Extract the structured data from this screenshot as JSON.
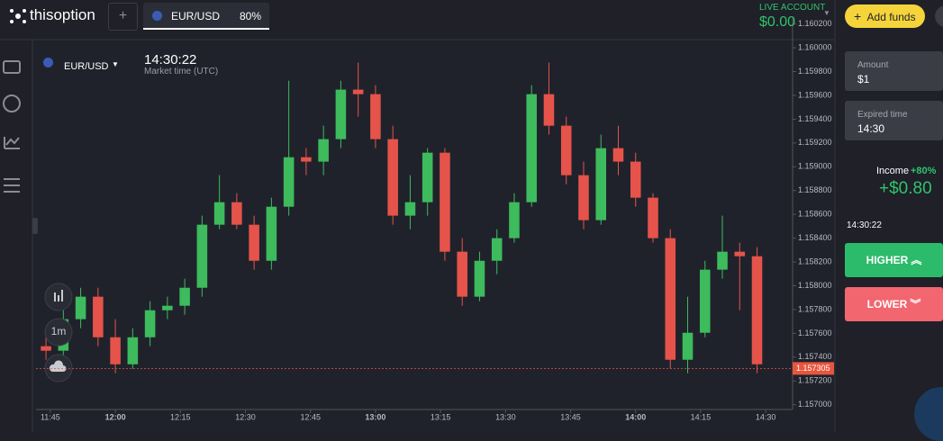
{
  "header": {
    "logo": "thisoption",
    "tab": {
      "symbol": "EUR/USD",
      "payout": "80%"
    },
    "account": {
      "label": "LIVE ACCOUNT",
      "balance": "$0.00"
    },
    "add_funds": "Add funds"
  },
  "chart_panel": {
    "symbol": "EUR/USD",
    "time": "14:30:22",
    "time_label": "Market time (UTC)",
    "timeframe": "1m"
  },
  "chart_data": {
    "type": "candlestick",
    "x": [
      704,
      708,
      712,
      716,
      720,
      724,
      728,
      732,
      736,
      740,
      744,
      748,
      752,
      756,
      760,
      764,
      768,
      772,
      776,
      780,
      784,
      788,
      792,
      796,
      800,
      804,
      808,
      812,
      816,
      820,
      824,
      828,
      832,
      836,
      840,
      844,
      848,
      852,
      856,
      860,
      864,
      868
    ],
    "open": [
      1.157492,
      1.157454,
      1.157719,
      1.157908,
      1.157567,
      1.15734,
      1.157567,
      1.157794,
      1.157832,
      1.157983,
      1.158513,
      1.158702,
      1.158513,
      1.15821,
      1.158664,
      1.15908,
      1.159043,
      1.159232,
      1.159648,
      1.15961,
      1.159232,
      1.158589,
      1.158702,
      1.159118,
      1.158286,
      1.157908,
      1.15821,
      1.1584,
      1.158702,
      1.15961,
      1.159345,
      1.158929,
      1.158551,
      1.159156,
      1.159043,
      1.15874,
      1.1584,
      1.157378,
      1.157605,
      1.158135,
      1.158286,
      1.158248
    ],
    "high": [
      1.157567,
      1.157794,
      1.157983,
      1.157983,
      1.157719,
      1.157643,
      1.15787,
      1.157908,
      1.158059,
      1.158589,
      1.158929,
      1.158778,
      1.158589,
      1.15874,
      1.159723,
      1.159156,
      1.159345,
      1.159723,
      1.159875,
      1.159686,
      1.159345,
      1.158929,
      1.159156,
      1.159156,
      1.1584,
      1.158286,
      1.158475,
      1.158778,
      1.159686,
      1.159875,
      1.159421,
      1.159043,
      1.15927,
      1.159345,
      1.159118,
      1.158778,
      1.158475,
      1.157908,
      1.15821,
      1.158589,
      1.158362,
      1.158324
    ],
    "low": [
      1.157378,
      1.157378,
      1.157643,
      1.157492,
      1.157265,
      1.157303,
      1.157492,
      1.157719,
      1.157757,
      1.157908,
      1.158475,
      1.158475,
      1.158135,
      1.158135,
      1.158589,
      1.158929,
      1.158929,
      1.159156,
      1.159421,
      1.159156,
      1.158513,
      1.158475,
      1.158589,
      1.15821,
      1.157832,
      1.15787,
      1.158097,
      1.158362,
      1.158664,
      1.15927,
      1.158853,
      1.158475,
      1.158513,
      1.158929,
      1.158664,
      1.158362,
      1.157303,
      1.157265,
      1.157567,
      1.158059,
      1.157794,
      1.157265
    ],
    "close": [
      1.157454,
      1.157719,
      1.157908,
      1.157567,
      1.15734,
      1.157567,
      1.157794,
      1.157832,
      1.157983,
      1.158513,
      1.158702,
      1.158513,
      1.15821,
      1.158664,
      1.15908,
      1.159043,
      1.159232,
      1.159648,
      1.15961,
      1.159232,
      1.158589,
      1.158702,
      1.159118,
      1.158286,
      1.157908,
      1.15821,
      1.1584,
      1.158702,
      1.15961,
      1.159345,
      1.158929,
      1.158551,
      1.159156,
      1.159043,
      1.15874,
      1.1584,
      1.157378,
      1.157605,
      1.158135,
      1.158286,
      1.158248,
      1.15734
    ],
    "up_color": "#3dbb5d",
    "down_color": "#e5534b",
    "xlim": [
      701.7,
      876.2
    ],
    "xticks": [
      {
        "value": 705,
        "label": "11:45"
      },
      {
        "value": 720,
        "label": "12:00"
      },
      {
        "value": 735,
        "label": "12:15"
      },
      {
        "value": 750,
        "label": "12:30"
      },
      {
        "value": 765,
        "label": "12:45"
      },
      {
        "value": 780,
        "label": "13:00"
      },
      {
        "value": 795,
        "label": "13:15"
      },
      {
        "value": 810,
        "label": "13:30"
      },
      {
        "value": 825,
        "label": "13:45"
      },
      {
        "value": 840,
        "label": "14:00"
      },
      {
        "value": 855,
        "label": "14:15"
      },
      {
        "value": 870,
        "label": "14:30"
      }
    ],
    "ylim": [
      1.15696,
      1.16025
    ],
    "yticks": [
      {
        "value": 1.1602,
        "label": "1.160200"
      },
      {
        "value": 1.16,
        "label": "1.160000"
      },
      {
        "value": 1.1598,
        "label": "1.159800"
      },
      {
        "value": 1.1596,
        "label": "1.159600"
      },
      {
        "value": 1.1594,
        "label": "1.159400"
      },
      {
        "value": 1.1592,
        "label": "1.159200"
      },
      {
        "value": 1.159,
        "label": "1.159000"
      },
      {
        "value": 1.1588,
        "label": "1.158800"
      },
      {
        "value": 1.1586,
        "label": "1.158600"
      },
      {
        "value": 1.1584,
        "label": "1.158400"
      },
      {
        "value": 1.1582,
        "label": "1.158200"
      },
      {
        "value": 1.158,
        "label": "1.158000"
      },
      {
        "value": 1.1578,
        "label": "1.157800"
      },
      {
        "value": 1.1576,
        "label": "1.157600"
      },
      {
        "value": 1.1574,
        "label": "1.157400"
      },
      {
        "value": 1.1572,
        "label": "1.157200"
      },
      {
        "value": 1.157,
        "label": "1.157000"
      }
    ],
    "current_price": 1.157305,
    "current_price_color": "#e8563e"
  },
  "trade_panel": {
    "amount_label": "Amount",
    "amount": "$1",
    "expiry_label": "Expired time",
    "expiry": "14:30",
    "income_label": "Income",
    "income_percent": "+80%",
    "income": "+$0.80",
    "clock": "14:30:22",
    "higher": "HIGHER",
    "lower": "LOWER"
  }
}
